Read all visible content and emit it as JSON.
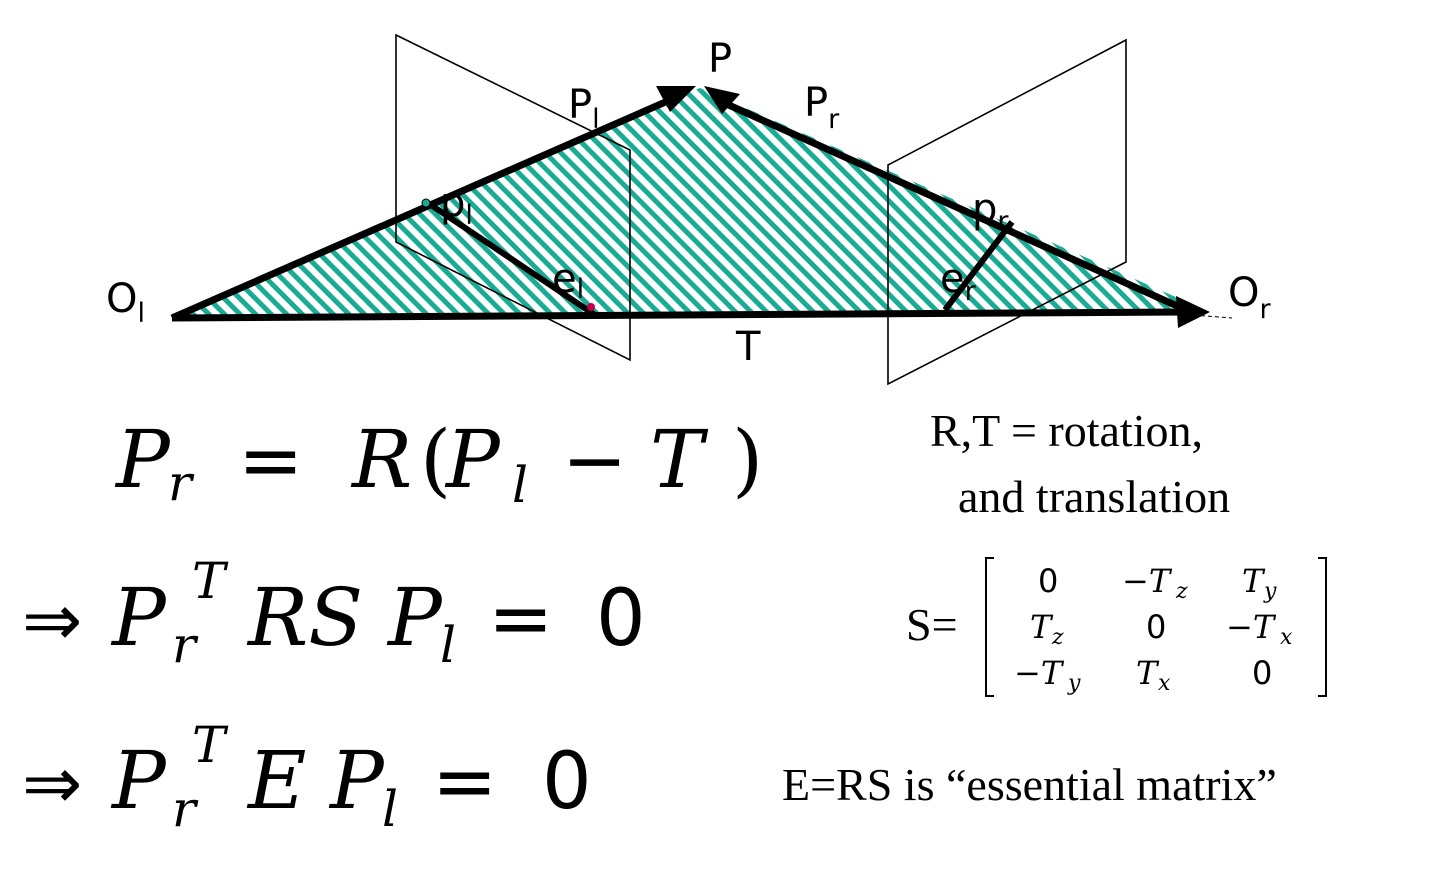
{
  "colors": {
    "fill": "#1aab95",
    "ink": "#000000",
    "epipole": "#c0004a"
  },
  "labels": {
    "P": "P",
    "Pl_main": "P",
    "Pl_sub": "l",
    "Pr_main": "P",
    "Pr_sub": "r",
    "pl_main": "p",
    "pl_sub": "l",
    "pr_main": "p",
    "pr_sub": "r",
    "el_main": "e",
    "el_sub": "l",
    "er_main": "e",
    "er_sub": "r",
    "Ol_main": "O",
    "Ol_sub": "l",
    "Or_main": "O",
    "Or_sub": "r",
    "T": "T"
  },
  "eq1": {
    "Pr": "P",
    "r": "r",
    "eq": "=",
    "R": "R",
    "lp": "(",
    "Pl": "P",
    "l": "l",
    "minus": "−",
    "T": "T",
    "rp": ")"
  },
  "eq2": {
    "arrow": "⇒",
    "Pr": "P",
    "T": "T",
    "r": "r",
    "RS": "RS",
    "Pl": "P",
    "l": "l",
    "eq": "=",
    "zero": "0"
  },
  "eq3": {
    "arrow": "⇒",
    "Pr": "P",
    "T": "T",
    "r": "r",
    "E": "E",
    "Pl": "P",
    "l": "l",
    "eq": "=",
    "zero": "0"
  },
  "notes": {
    "rt_line1": "R,T  = rotation,",
    "rt_line2": "and translation",
    "s_label": "S=",
    "essential": "E=RS is “essential matrix”"
  },
  "matrix": [
    [
      "0",
      "−T",
      "z",
      "T",
      "y"
    ],
    [
      "T",
      "z",
      "0",
      "−T",
      "x"
    ],
    [
      "−T",
      "y",
      "T",
      "x",
      "0"
    ]
  ]
}
